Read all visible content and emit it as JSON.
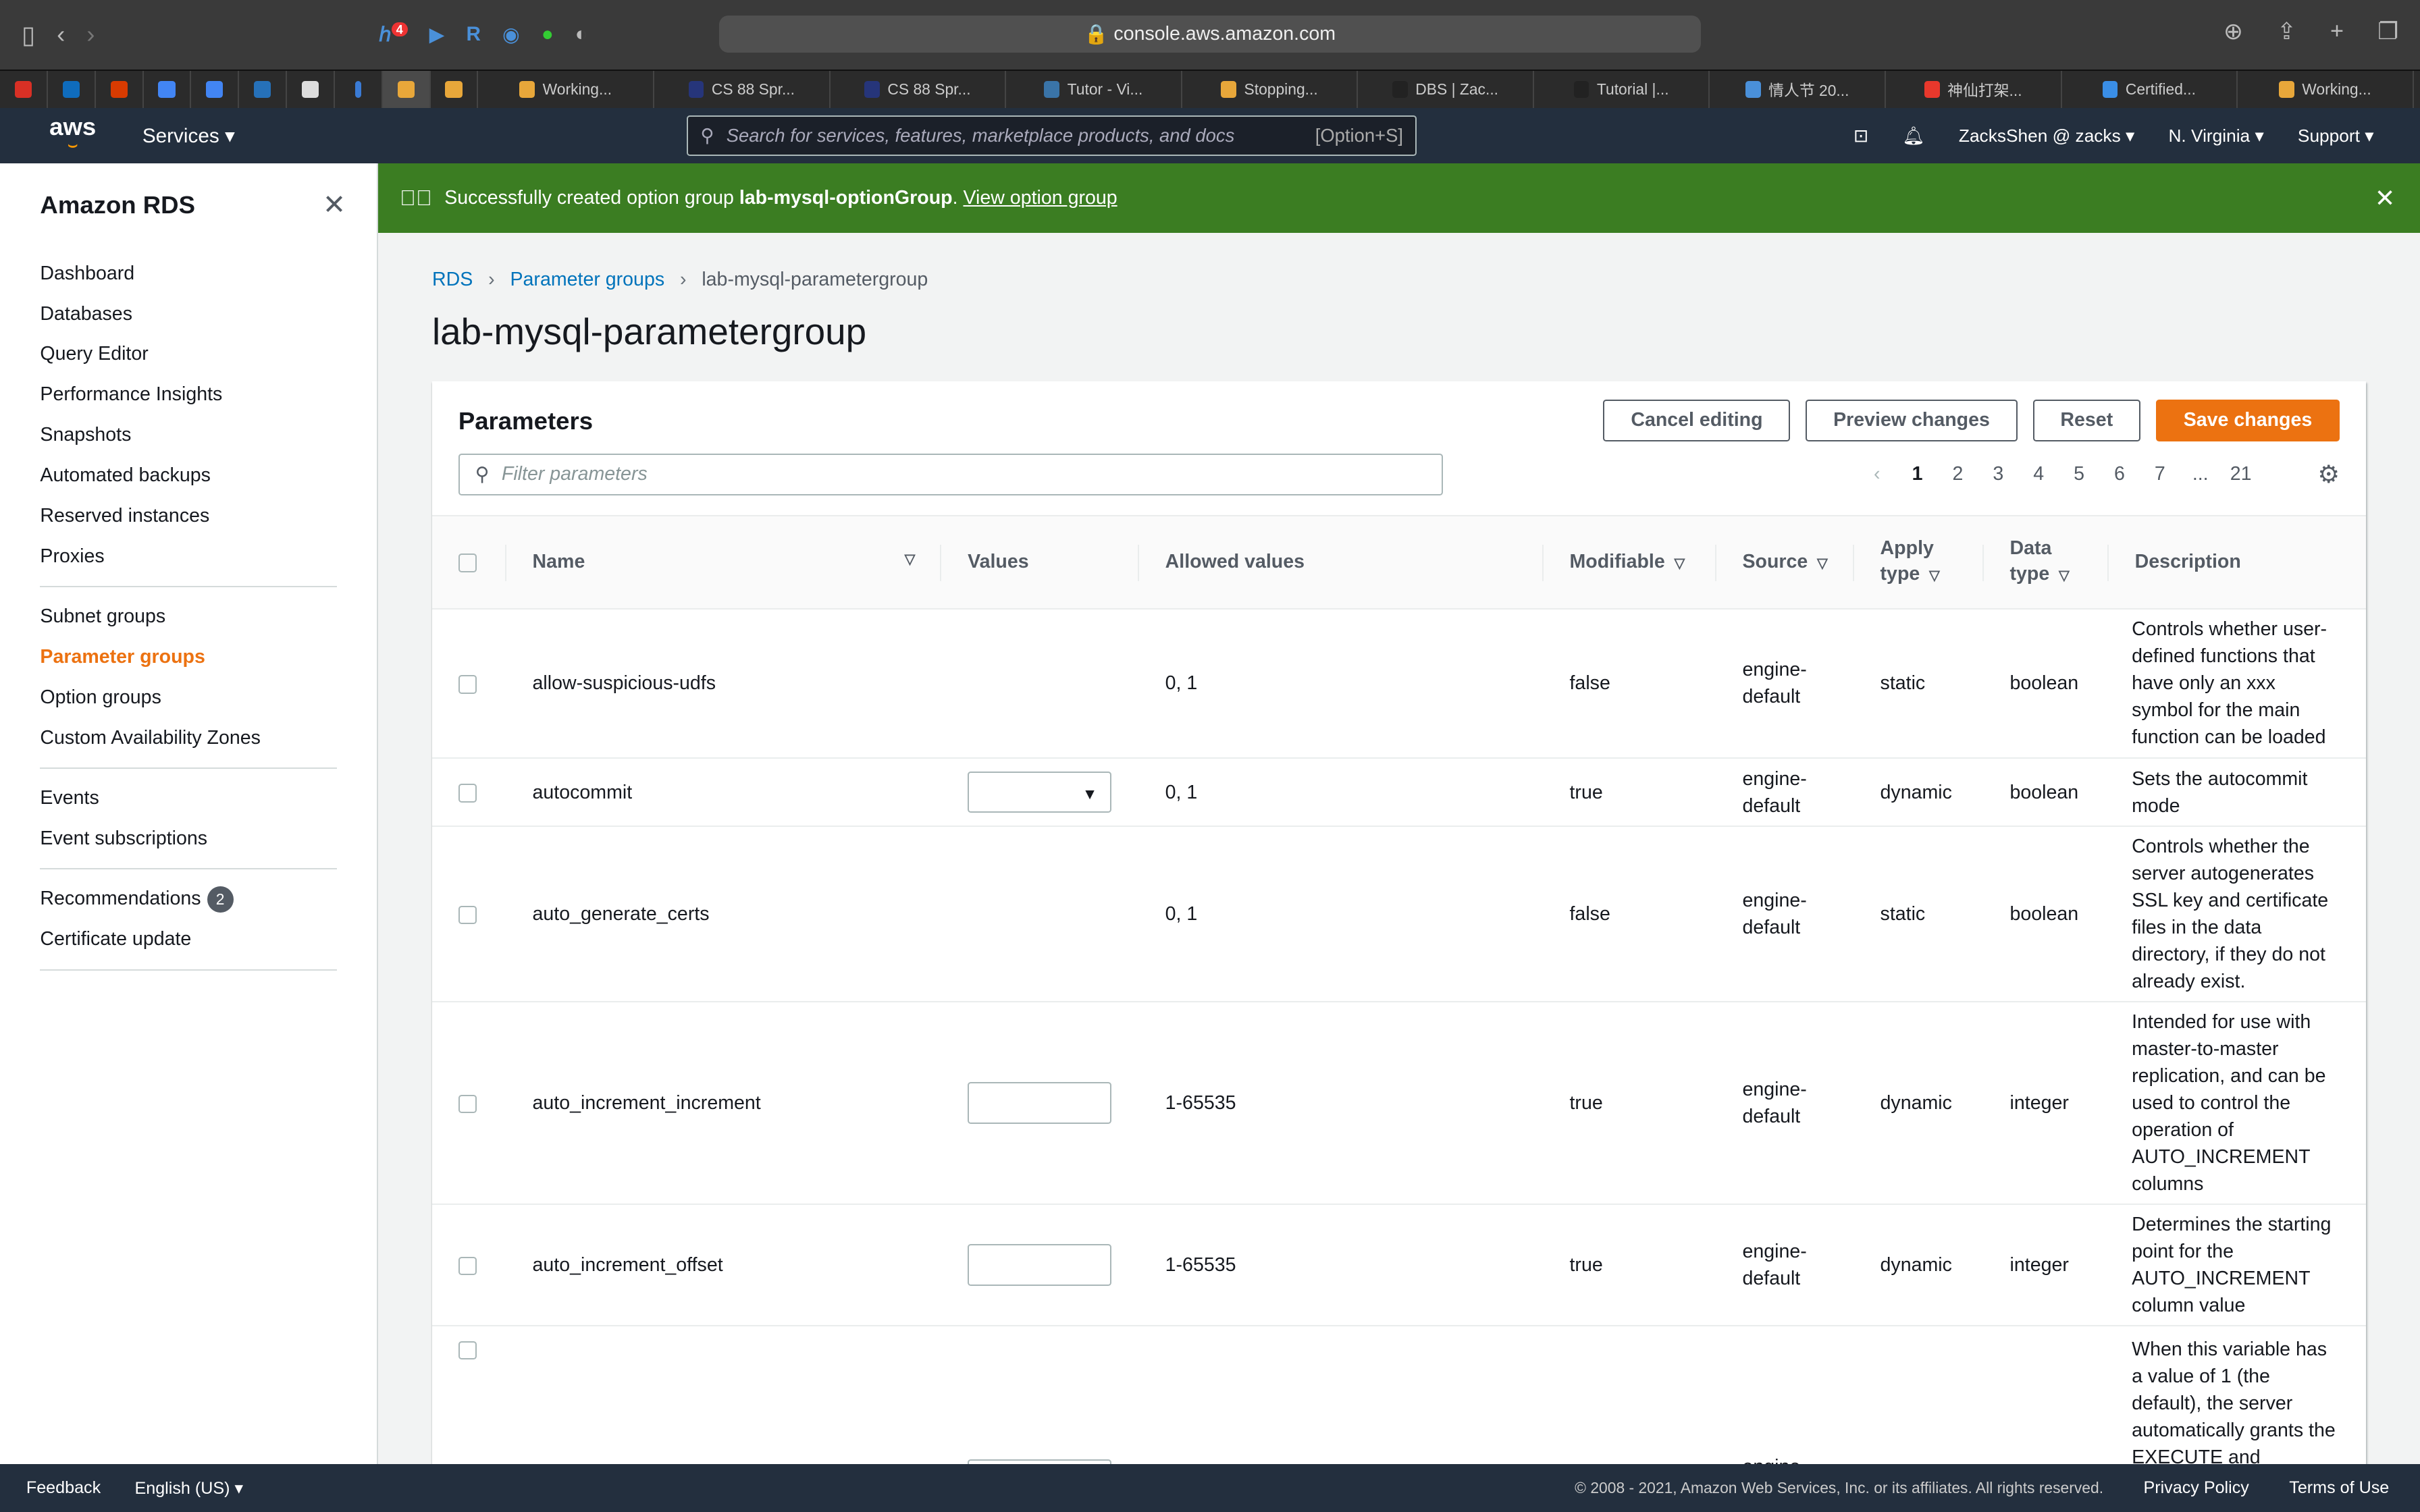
{
  "browser": {
    "url": "console.aws.amazon.com",
    "notification_count": "4",
    "tabs": [
      {
        "label": "Working...",
        "color": "#e8a73a"
      },
      {
        "label": "CS 88 Spr...",
        "color": "#26357a"
      },
      {
        "label": "CS 88 Spr...",
        "color": "#26357a"
      },
      {
        "label": "Tutor - Vi...",
        "color": "#3a74a8"
      },
      {
        "label": "Stopping...",
        "color": "#e8a73a"
      },
      {
        "label": "DBS | Zac...",
        "color": "#222222"
      },
      {
        "label": "Tutorial |...",
        "color": "#222222"
      },
      {
        "label": "情人节 20...",
        "color": "#4a90d9"
      },
      {
        "label": "神仙打架...",
        "color": "#e8382c"
      },
      {
        "label": "Certified...",
        "color": "#3a8ee6"
      },
      {
        "label": "Working...",
        "color": "#e8a73a"
      }
    ]
  },
  "topnav": {
    "logo": "aws",
    "services": "Services",
    "search_placeholder": "Search for services, features, marketplace products, and docs",
    "search_shortcut": "[Option+S]",
    "user": "ZacksShen @ zacks",
    "region": "N. Virginia",
    "support": "Support"
  },
  "sidebar": {
    "title": "Amazon RDS",
    "groups": [
      [
        "Dashboard",
        "Databases",
        "Query Editor",
        "Performance Insights",
        "Snapshots",
        "Automated backups",
        "Reserved instances",
        "Proxies"
      ],
      [
        "Subnet groups",
        "Parameter groups",
        "Option groups",
        "Custom Availability Zones"
      ],
      [
        "Events",
        "Event subscriptions"
      ],
      [
        "Recommendations",
        "Certificate update"
      ]
    ],
    "selected": "Parameter groups",
    "recommendations_badge": "2"
  },
  "flash": {
    "prefix": "Successfully created option group ",
    "name": "lab-mysql-optionGroup",
    "suffix": ".",
    "link": "View option group",
    "color": "#3b7d22"
  },
  "breadcrumb": [
    "RDS",
    "Parameter groups",
    "lab-mysql-parametergroup"
  ],
  "page_title": "lab-mysql-parametergroup",
  "panel": {
    "title": "Parameters",
    "buttons": {
      "cancel": "Cancel editing",
      "preview": "Preview changes",
      "reset": "Reset",
      "save": "Save changes"
    },
    "filter_placeholder": "Filter parameters",
    "pages": [
      "1",
      "2",
      "3",
      "4",
      "5",
      "6",
      "7",
      "...",
      "21"
    ],
    "current_page": "1",
    "columns": {
      "name": "Name",
      "values": "Values",
      "allowed": "Allowed values",
      "modifiable": "Modifiable",
      "source": "Source",
      "apply": "Apply type",
      "data": "Data type",
      "desc": "Description"
    },
    "rows": [
      {
        "name": "allow-suspicious-udfs",
        "value_control": "none",
        "allowed": "0, 1",
        "modifiable": "false",
        "source": "engine-default",
        "apply": "static",
        "data": "boolean",
        "desc": "Controls whether user-defined functions that have only an xxx symbol for the main function can be loaded"
      },
      {
        "name": "autocommit",
        "value_control": "select",
        "allowed": "0, 1",
        "modifiable": "true",
        "source": "engine-default",
        "apply": "dynamic",
        "data": "boolean",
        "desc": "Sets the autocommit mode"
      },
      {
        "name": "auto_generate_certs",
        "value_control": "none",
        "allowed": "0, 1",
        "modifiable": "false",
        "source": "engine-default",
        "apply": "static",
        "data": "boolean",
        "desc": "Controls whether the server autogenerates SSL key and certificate files in the data directory, if they do not already exist."
      },
      {
        "name": "auto_increment_increment",
        "value_control": "input",
        "allowed": "1-65535",
        "modifiable": "true",
        "source": "engine-default",
        "apply": "dynamic",
        "data": "integer",
        "desc": "Intended for use with master-to-master replication, and can be used to control the operation of AUTO_INCREMENT columns"
      },
      {
        "name": "auto_increment_offset",
        "value_control": "input",
        "allowed": "1-65535",
        "modifiable": "true",
        "source": "engine-default",
        "apply": "dynamic",
        "data": "integer",
        "desc": "Determines the starting point for the AUTO_INCREMENT column value"
      },
      {
        "name": "",
        "value_control": "input",
        "allowed": "",
        "modifiable": "",
        "source": "engine-",
        "apply": "",
        "data": "",
        "desc": "When this variable has a value of 1 (the default), the server automatically grants the EXECUTE and"
      }
    ]
  },
  "footer": {
    "feedback": "Feedback",
    "language": "English (US)",
    "copyright": "© 2008 - 2021, Amazon Web Services, Inc. or its affiliates. All rights reserved.",
    "privacy": "Privacy Policy",
    "terms": "Terms of Use"
  }
}
